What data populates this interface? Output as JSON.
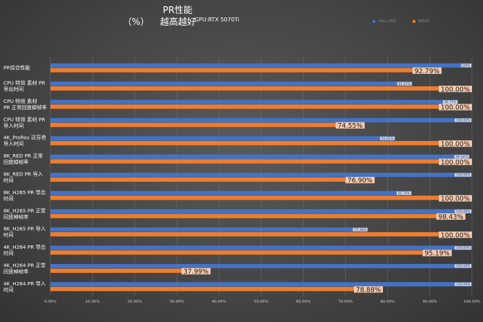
{
  "header": {
    "title": "PR性能",
    "unit": "（%）",
    "note": "越高越好",
    "gpu": "GPU:RTX 5070Ti"
  },
  "chart_data": {
    "type": "bar",
    "orientation": "horizontal",
    "title": "PR性能",
    "xlim": [
      0,
      100
    ],
    "x_ticks": [
      "0.00%",
      "10.00%",
      "20.00%",
      "30.00%",
      "40.00%",
      "50.00%",
      "60.00%",
      "70.00%",
      "80.00%",
      "90.00%",
      "100.00%"
    ],
    "grid": true,
    "legend_position": "top-right",
    "categories": [
      [
        "PR综合性能"
      ],
      [
        "CPU 特效 素材 PR",
        "导出时间"
      ],
      [
        "CPU 特效 素材",
        "PR 正常回放掉帧率"
      ],
      [
        "CPU 特效 素材 PR",
        "导入时间"
      ],
      [
        "4K_ProRes 达芬奇",
        "导入时间"
      ],
      [
        "8K_RED PR 正常",
        "回放掉帧率"
      ],
      [
        "8K_RED PR 导入",
        "时间"
      ],
      [
        "8K_H265 PR 导出",
        "时间"
      ],
      [
        "8K_H265 PR 正常",
        "回放掉帧率"
      ],
      [
        "8K_H265 PR 导入",
        "时间"
      ],
      [
        "4K_H264 PR 导出",
        "时间"
      ],
      [
        "4K_H264 PR 正常",
        "回放掉帧率"
      ],
      [
        "4K_H264 PR 导入",
        "时间"
      ]
    ],
    "series": [
      {
        "name": "Ultra 285K",
        "color": "#4472C4",
        "values": [
          100.0,
          85.87,
          96.71,
          100.0,
          81.81,
          99.44,
          100.0,
          85.74,
          100.0,
          75.36,
          100.0,
          100.0,
          100.0
        ],
        "labels": [
          "100%",
          "85.87%",
          "96.71%",
          "100.00%",
          "81.81%",
          "99.44%",
          "100.00%",
          "85.74%",
          "100.00%",
          "75.36%",
          "100.00%",
          "100.00%",
          "100.00%"
        ]
      },
      {
        "name": "9950X",
        "color": "#ED7D31",
        "values": [
          92.79,
          100.0,
          100.0,
          74.55,
          100.0,
          100.0,
          76.9,
          100.0,
          98.43,
          100.0,
          95.19,
          37.99,
          78.88
        ],
        "labels": [
          "92.79%",
          "100.00%",
          "100.00%",
          "74.55%",
          "100.00%",
          "100.00%",
          "76.90%",
          "100.00%",
          "98.43%",
          "100.00%",
          "95.19%",
          "37.99%",
          "78.88%"
        ]
      }
    ]
  }
}
